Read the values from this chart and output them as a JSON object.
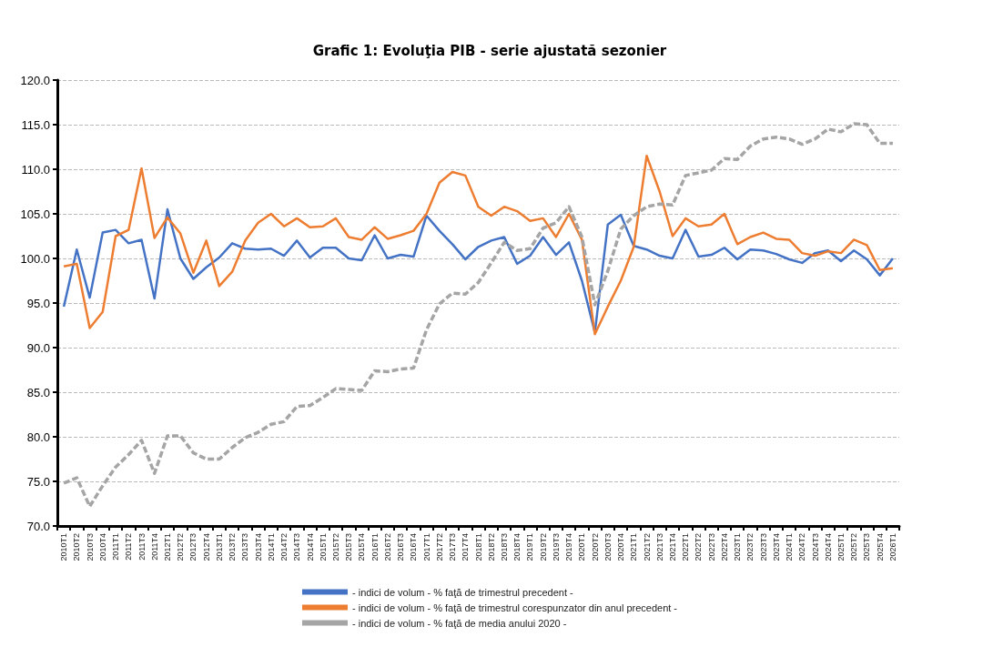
{
  "chart_data": {
    "type": "line",
    "title": "Grafic 1: Evoluţia PIB - serie ajustată sezonier",
    "categories": [
      "2010T1",
      "2010T2",
      "2010T3",
      "2010T4",
      "2011T1",
      "2011T2",
      "2011T3",
      "2011T4",
      "2012T1",
      "2012T2",
      "2012T3",
      "2012T4",
      "2013T1",
      "2013T2",
      "2013T3",
      "2013T4",
      "2014T1",
      "2014T2",
      "2014T3",
      "2014T4",
      "2015T1",
      "2015T2",
      "2015T3",
      "2015T4",
      "2016T1",
      "2016T2",
      "2016T3",
      "2016T4",
      "2017T1",
      "2017T2",
      "2017T3",
      "2017T4",
      "2018T1",
      "2018T2",
      "2018T3",
      "2018T4",
      "2019T1",
      "2019T2",
      "2019T3",
      "2019T4",
      "2020T1",
      "2020T2",
      "2020T3",
      "2020T4",
      "2021T1",
      "2021T2",
      "2021T3",
      "2021T4",
      "2022T1",
      "2022T2",
      "2022T3",
      "2022T4",
      "2023T1",
      "2023T2",
      "2023T3",
      "2023T4",
      "2024T1",
      "2024T2",
      "2024T3",
      "2024T4",
      "2025T1",
      "2025T2",
      "2025T3",
      "2025T4",
      "2026T1"
    ],
    "series": [
      {
        "name": "- indici de volum - % faţă de trimestrul precedent -",
        "color": "#4472c4",
        "line_style": "solid",
        "values": [
          94.6,
          101.0,
          95.6,
          102.9,
          103.2,
          101.7,
          102.1,
          95.5,
          105.5,
          100.0,
          97.7,
          99.0,
          100.1,
          101.7,
          101.1,
          101.0,
          101.1,
          100.3,
          102.0,
          100.1,
          101.2,
          101.2,
          100.0,
          99.8,
          102.6,
          100.0,
          100.4,
          100.2,
          104.8,
          103.1,
          101.6,
          99.9,
          101.3,
          102.0,
          102.4,
          99.4,
          100.3,
          102.4,
          100.4,
          101.8,
          97.5,
          91.7,
          103.8,
          104.9,
          101.4,
          101.0,
          100.3,
          100.0,
          103.2,
          100.2,
          100.4,
          101.2,
          99.9,
          101.0,
          100.9,
          100.5,
          99.9,
          99.5,
          100.6,
          100.9,
          99.7,
          100.9,
          99.9,
          98.1,
          100.0
        ]
      },
      {
        "name": "- indici de volum - % faţă de trimestrul corespunzator din anul precedent -",
        "color": "#ed7d31",
        "line_style": "solid",
        "values": [
          99.1,
          99.4,
          92.2,
          94.0,
          102.5,
          103.2,
          110.1,
          102.3,
          104.6,
          102.8,
          98.4,
          102.0,
          96.9,
          98.5,
          102.0,
          104.0,
          105.0,
          103.6,
          104.5,
          103.5,
          103.6,
          104.5,
          102.4,
          102.1,
          103.5,
          102.2,
          102.6,
          103.1,
          105.0,
          108.5,
          109.7,
          109.3,
          105.8,
          104.8,
          105.8,
          105.3,
          104.2,
          104.5,
          102.4,
          105.0,
          102.1,
          91.5,
          94.6,
          97.5,
          101.3,
          111.5,
          107.5,
          102.5,
          104.5,
          103.6,
          103.8,
          105.0,
          101.6,
          102.4,
          102.9,
          102.2,
          102.1,
          100.6,
          100.3,
          100.8,
          100.6,
          102.1,
          101.5,
          98.7,
          98.9
        ]
      },
      {
        "name": "- indici de volum - % faţă de media anului 2020 -",
        "color": "#a5a5a5",
        "line_style": "dashed",
        "values": [
          74.8,
          75.4,
          72.2,
          74.5,
          76.6,
          78.0,
          79.6,
          75.9,
          80.1,
          80.1,
          78.2,
          77.5,
          77.5,
          78.8,
          79.9,
          80.5,
          81.4,
          81.7,
          83.4,
          83.5,
          84.4,
          85.4,
          85.3,
          85.2,
          87.4,
          87.3,
          87.6,
          87.7,
          92.0,
          94.9,
          96.1,
          96.0,
          97.3,
          99.5,
          101.8,
          100.9,
          101.1,
          103.4,
          104.0,
          105.8,
          102.4,
          94.8,
          98.6,
          103.3,
          104.8,
          105.8,
          106.1,
          106.0,
          109.3,
          109.6,
          109.9,
          111.2,
          111.1,
          112.6,
          113.4,
          113.6,
          113.4,
          112.8,
          113.4,
          114.5,
          114.2,
          115.1,
          115.0,
          112.9,
          112.9
        ]
      }
    ],
    "ylim": [
      70,
      120
    ],
    "yticks": [
      {
        "value": 70,
        "label": "70.0"
      },
      {
        "value": 75,
        "label": "75.0"
      },
      {
        "value": 80,
        "label": "80.0"
      },
      {
        "value": 85,
        "label": "85.0"
      },
      {
        "value": 90,
        "label": "90.0"
      },
      {
        "value": 95,
        "label": "95.0"
      },
      {
        "value": 100,
        "label": "100.0"
      },
      {
        "value": 105,
        "label": "105.0"
      },
      {
        "value": 110,
        "label": "110.0"
      },
      {
        "value": 115,
        "label": "115.0"
      },
      {
        "value": 120,
        "label": "120.0"
      }
    ],
    "grid": "y",
    "legend": "bottom",
    "marker": "none"
  }
}
